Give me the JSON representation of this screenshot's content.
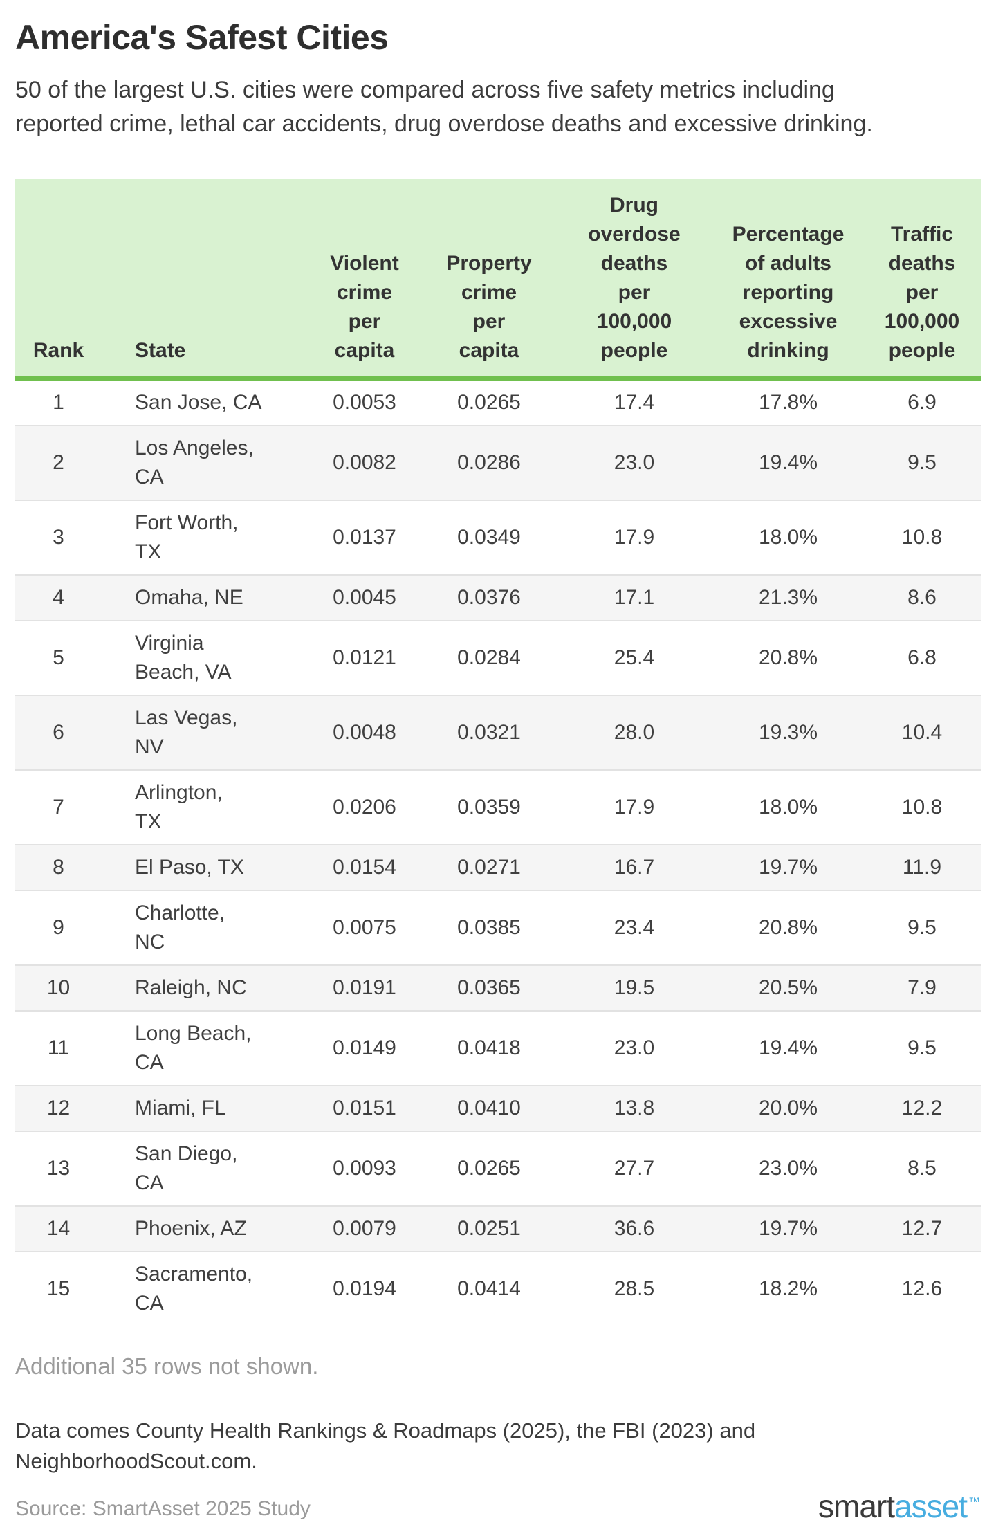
{
  "title": "America's Safest Cities",
  "subtitle": "50 of the largest U.S. cities were compared across five safety metrics including\nreported crime, lethal car accidents, drug overdose deaths and excessive drinking.",
  "table": {
    "header_lines": [
      "Rank",
      "State",
      "Violent\ncrime\nper\ncapita",
      "Property\ncrime\nper\ncapita",
      "Drug\noverdose\ndeaths\nper\n100,000\npeople",
      "Percentage\nof adults\nreporting\nexcessive\ndrinking",
      "Traffic\ndeaths\nper\n100,000\npeople"
    ],
    "state_display": [
      "San Jose, CA",
      "Los Angeles,\nCA",
      "Fort Worth,\nTX",
      "Omaha, NE",
      "Virginia\nBeach, VA",
      "Las Vegas,\nNV",
      "Arlington,\nTX",
      "El Paso, TX",
      "Charlotte,\nNC",
      "Raleigh, NC",
      "Long Beach,\nCA",
      "Miami, FL",
      "San Diego,\nCA",
      "Phoenix, AZ",
      "Sacramento,\nCA"
    ]
  },
  "chart_data": {
    "type": "table",
    "title": "America's Safest Cities",
    "columns": [
      "Rank",
      "State",
      "Violent crime per capita",
      "Property crime per capita",
      "Drug overdose deaths per 100,000 people",
      "Percentage of adults reporting excessive drinking",
      "Traffic deaths per 100,000 people"
    ],
    "rows": [
      [
        "1",
        "San Jose, CA",
        "0.0053",
        "0.0265",
        "17.4",
        "17.8%",
        "6.9"
      ],
      [
        "2",
        "Los Angeles, CA",
        "0.0082",
        "0.0286",
        "23.0",
        "19.4%",
        "9.5"
      ],
      [
        "3",
        "Fort Worth, TX",
        "0.0137",
        "0.0349",
        "17.9",
        "18.0%",
        "10.8"
      ],
      [
        "4",
        "Omaha, NE",
        "0.0045",
        "0.0376",
        "17.1",
        "21.3%",
        "8.6"
      ],
      [
        "5",
        "Virginia Beach, VA",
        "0.0121",
        "0.0284",
        "25.4",
        "20.8%",
        "6.8"
      ],
      [
        "6",
        "Las Vegas, NV",
        "0.0048",
        "0.0321",
        "28.0",
        "19.3%",
        "10.4"
      ],
      [
        "7",
        "Arlington, TX",
        "0.0206",
        "0.0359",
        "17.9",
        "18.0%",
        "10.8"
      ],
      [
        "8",
        "El Paso, TX",
        "0.0154",
        "0.0271",
        "16.7",
        "19.7%",
        "11.9"
      ],
      [
        "9",
        "Charlotte, NC",
        "0.0075",
        "0.0385",
        "23.4",
        "20.8%",
        "9.5"
      ],
      [
        "10",
        "Raleigh, NC",
        "0.0191",
        "0.0365",
        "19.5",
        "20.5%",
        "7.9"
      ],
      [
        "11",
        "Long Beach, CA",
        "0.0149",
        "0.0418",
        "23.0",
        "19.4%",
        "9.5"
      ],
      [
        "12",
        "Miami, FL",
        "0.0151",
        "0.0410",
        "13.8",
        "20.0%",
        "12.2"
      ],
      [
        "13",
        "San Diego, CA",
        "0.0093",
        "0.0265",
        "27.7",
        "23.0%",
        "8.5"
      ],
      [
        "14",
        "Phoenix, AZ",
        "0.0079",
        "0.0251",
        "36.6",
        "19.7%",
        "12.7"
      ],
      [
        "15",
        "Sacramento, CA",
        "0.0194",
        "0.0414",
        "28.5",
        "18.2%",
        "12.6"
      ]
    ]
  },
  "additional_note": "Additional 35 rows not shown.",
  "footer_note": "Data comes County Health Rankings & Roadmaps (2025), the FBI (2023) and\nNeighborhoodScout.com.",
  "source": "Source: SmartAsset 2025 Study",
  "logo": {
    "part1": "smart",
    "part2": "asset",
    "tm": "™"
  },
  "colors": {
    "header_bg": "#d9f2d1",
    "header_border": "#70c04e",
    "alt_row_bg": "#f5f5f5",
    "row_divider": "#e2e2e2",
    "muted_text": "#9b9b9b",
    "logo_blue": "#47ade0"
  }
}
